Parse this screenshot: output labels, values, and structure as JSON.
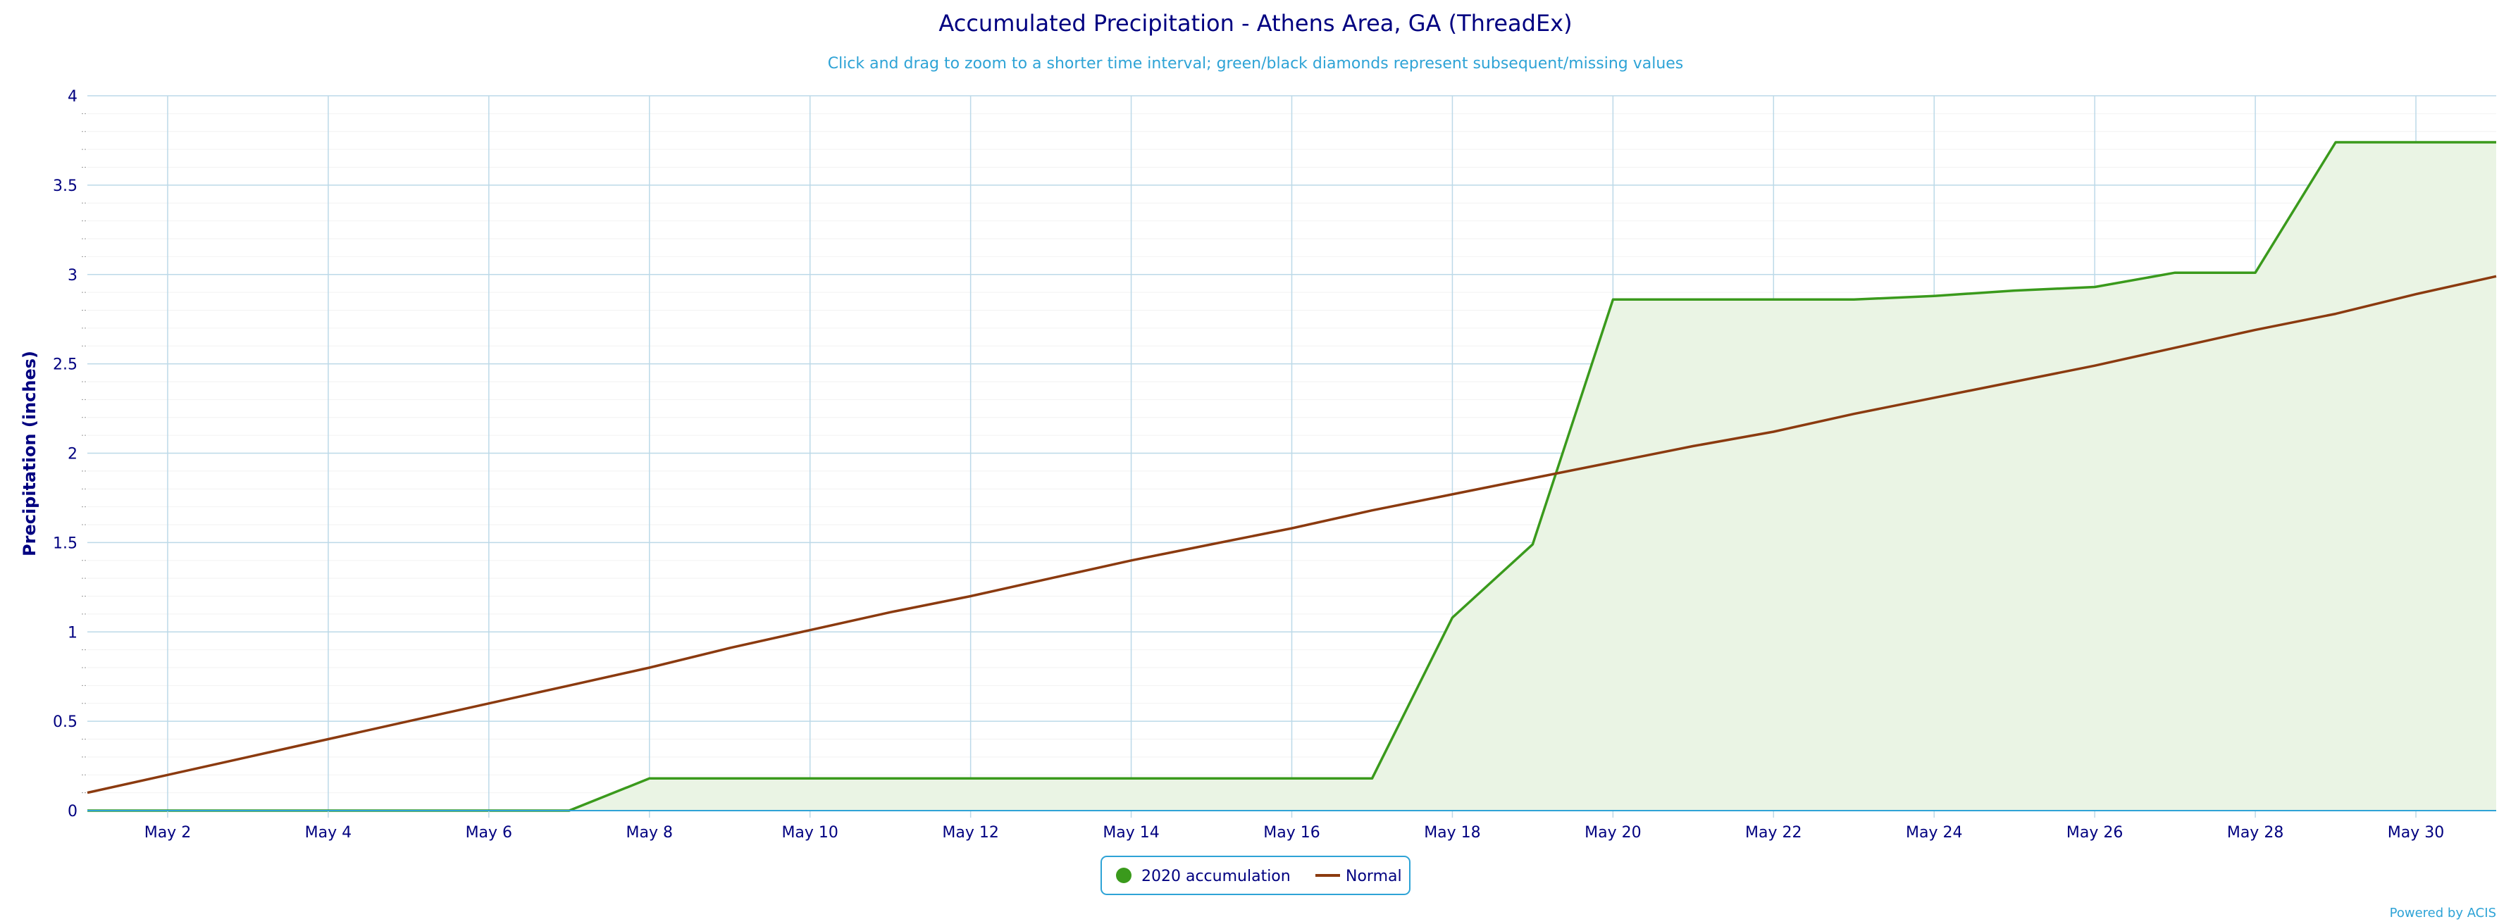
{
  "chart_data": {
    "type": "area",
    "title": "Accumulated Precipitation - Athens Area, GA (ThreadEx)",
    "subtitle": "Click and drag to zoom to a shorter time interval; green/black diamonds represent subsequent/missing values",
    "xlabel": "",
    "ylabel": "Precipitation (inches)",
    "ylim": [
      0,
      4
    ],
    "y_ticks": [
      "0",
      "0.5",
      "1",
      "1.5",
      "2",
      "2.5",
      "3",
      "3.5",
      "4"
    ],
    "y_tick_values": [
      0,
      0.5,
      1,
      1.5,
      2,
      2.5,
      3,
      3.5,
      4
    ],
    "xlim": [
      1,
      31
    ],
    "x_ticks": [
      "May 2",
      "May 4",
      "May 6",
      "May 8",
      "May 10",
      "May 12",
      "May 14",
      "May 16",
      "May 18",
      "May 20",
      "May 22",
      "May 24",
      "May 26",
      "May 28",
      "May 30"
    ],
    "x_tick_values": [
      2,
      4,
      6,
      8,
      10,
      12,
      14,
      16,
      18,
      20,
      22,
      24,
      26,
      28,
      30
    ],
    "grid": true,
    "legend_placement": "bottom-center",
    "series": [
      {
        "name": "2020 accumulation",
        "color": "#3a9a1c",
        "fill": "#eaf4e4",
        "x": [
          1,
          2,
          3,
          4,
          5,
          6,
          7,
          8,
          9,
          10,
          11,
          12,
          13,
          14,
          15,
          16,
          17,
          18,
          19,
          20,
          21,
          22,
          23,
          24,
          25,
          26,
          27,
          28,
          29,
          30,
          31
        ],
        "values": [
          0,
          0,
          0,
          0,
          0,
          0,
          0,
          0.18,
          0.18,
          0.18,
          0.18,
          0.18,
          0.18,
          0.18,
          0.18,
          0.18,
          0.18,
          1.08,
          1.49,
          2.86,
          2.86,
          2.86,
          2.86,
          2.88,
          2.91,
          2.93,
          3.01,
          3.01,
          3.74,
          3.74,
          3.74
        ]
      },
      {
        "name": "Normal",
        "color": "#8b3a0f",
        "x": [
          1,
          2,
          3,
          4,
          5,
          6,
          7,
          8,
          9,
          10,
          11,
          12,
          13,
          14,
          15,
          16,
          17,
          18,
          19,
          20,
          21,
          22,
          23,
          24,
          25,
          26,
          27,
          28,
          29,
          30,
          31
        ],
        "values": [
          0.1,
          0.2,
          0.3,
          0.4,
          0.5,
          0.6,
          0.7,
          0.8,
          0.91,
          1.01,
          1.11,
          1.2,
          1.3,
          1.4,
          1.49,
          1.58,
          1.68,
          1.77,
          1.86,
          1.95,
          2.04,
          2.12,
          2.22,
          2.31,
          2.4,
          2.49,
          2.59,
          2.69,
          2.78,
          2.89,
          2.99
        ]
      }
    ],
    "credit": "Powered by ACIS"
  }
}
